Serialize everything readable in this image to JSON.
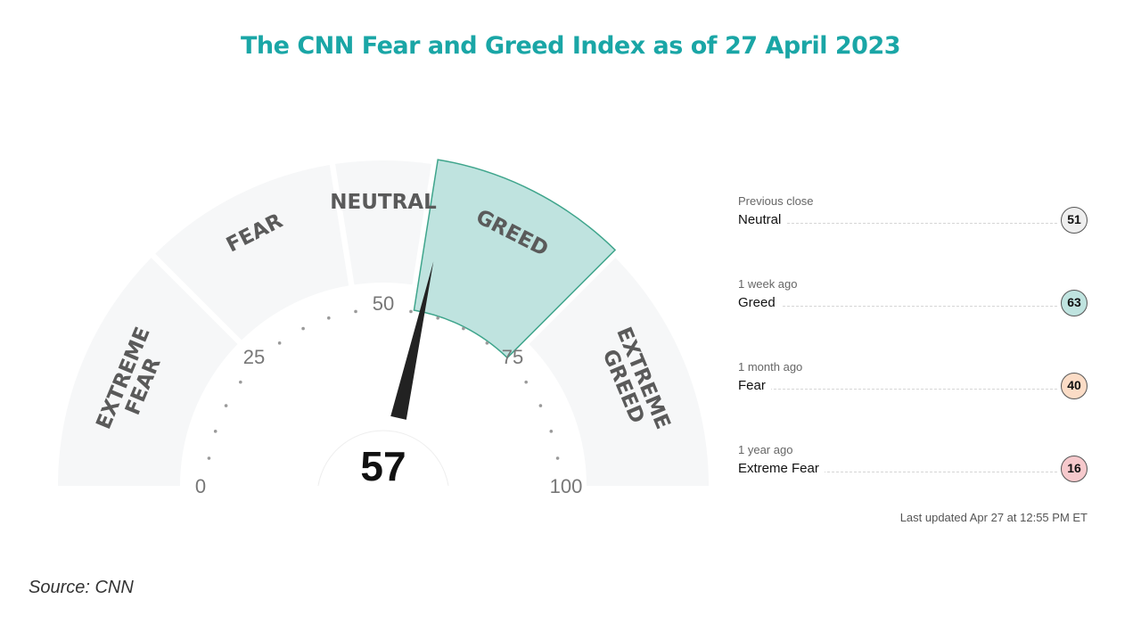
{
  "chart_data": {
    "type": "gauge",
    "title": "The CNN Fear and Greed Index as of 27 April 2023",
    "value": 57,
    "range": [
      0,
      100
    ],
    "ticks": [
      0,
      25,
      50,
      75,
      100
    ],
    "zones": [
      {
        "label": "EXTREME FEAR",
        "from": 0,
        "to": 25
      },
      {
        "label": "FEAR",
        "from": 25,
        "to": 45
      },
      {
        "label": "NEUTRAL",
        "from": 45,
        "to": 55
      },
      {
        "label": "GREED",
        "from": 55,
        "to": 75,
        "active": true
      },
      {
        "label": "EXTREME GREED",
        "from": 75,
        "to": 100
      }
    ],
    "history": [
      {
        "period": "Previous close",
        "rating": "Neutral",
        "value": 51,
        "color": "#eeeeee"
      },
      {
        "period": "1 week ago",
        "rating": "Greed",
        "value": 63,
        "color": "#bfe3df"
      },
      {
        "period": "1 month ago",
        "rating": "Fear",
        "value": 40,
        "color": "#fbdcc6"
      },
      {
        "period": "1 year ago",
        "rating": "Extreme Fear",
        "value": 16,
        "color": "#f6c9cc"
      }
    ]
  },
  "colors": {
    "title": "#1aa6a6",
    "zone_fill": "#f6f7f8",
    "active_fill": "#bfe3df",
    "active_stroke": "#3fa58c",
    "needle": "#222222",
    "zone_text": "#6a6a6a"
  },
  "last_updated": "Last updated Apr 27 at 12:55 PM ET",
  "source": "Source: CNN"
}
